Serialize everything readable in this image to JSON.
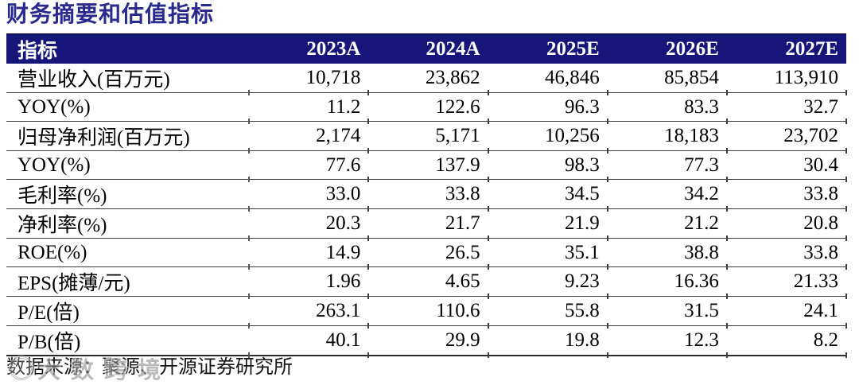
{
  "title": "财务摘要和估值指标",
  "table": {
    "header": {
      "label": "指标",
      "years": [
        "2023A",
        "2024A",
        "2025E",
        "2026E",
        "2027E"
      ]
    },
    "rows": [
      {
        "label": "营业收入(百万元)",
        "values": [
          "10,718",
          "23,862",
          "46,846",
          "85,854",
          "113,910"
        ]
      },
      {
        "label": "YOY(%)",
        "values": [
          "11.2",
          "122.6",
          "96.3",
          "83.3",
          "32.7"
        ]
      },
      {
        "label": "归母净利润(百万元)",
        "values": [
          "2,174",
          "5,171",
          "10,256",
          "18,183",
          "23,702"
        ]
      },
      {
        "label": "YOY(%)",
        "values": [
          "77.6",
          "137.9",
          "98.3",
          "77.3",
          "30.4"
        ]
      },
      {
        "label": "毛利率(%)",
        "values": [
          "33.0",
          "33.8",
          "34.5",
          "34.2",
          "33.8"
        ]
      },
      {
        "label": "净利率(%)",
        "values": [
          "20.3",
          "21.7",
          "21.9",
          "21.2",
          "20.8"
        ]
      },
      {
        "label": "ROE(%)",
        "values": [
          "14.9",
          "26.5",
          "35.1",
          "38.8",
          "33.8"
        ]
      },
      {
        "label": "EPS(摊薄/元)",
        "values": [
          "1.96",
          "4.65",
          "9.23",
          "16.36",
          "21.33"
        ]
      },
      {
        "label": "P/E(倍)",
        "values": [
          "263.1",
          "110.6",
          "55.8",
          "31.5",
          "24.1"
        ]
      },
      {
        "label": "P/B(倍)",
        "values": [
          "40.1",
          "29.9",
          "19.8",
          "12.3",
          "8.2"
        ]
      }
    ]
  },
  "footer": {
    "source": "数据来源：聚源、开源证券研究所"
  },
  "watermark": {
    "text": "大数跨境"
  },
  "colors": {
    "header_bg": "#16167A",
    "title_text": "#2A2A8E",
    "row_line": "#3D3D3D"
  }
}
